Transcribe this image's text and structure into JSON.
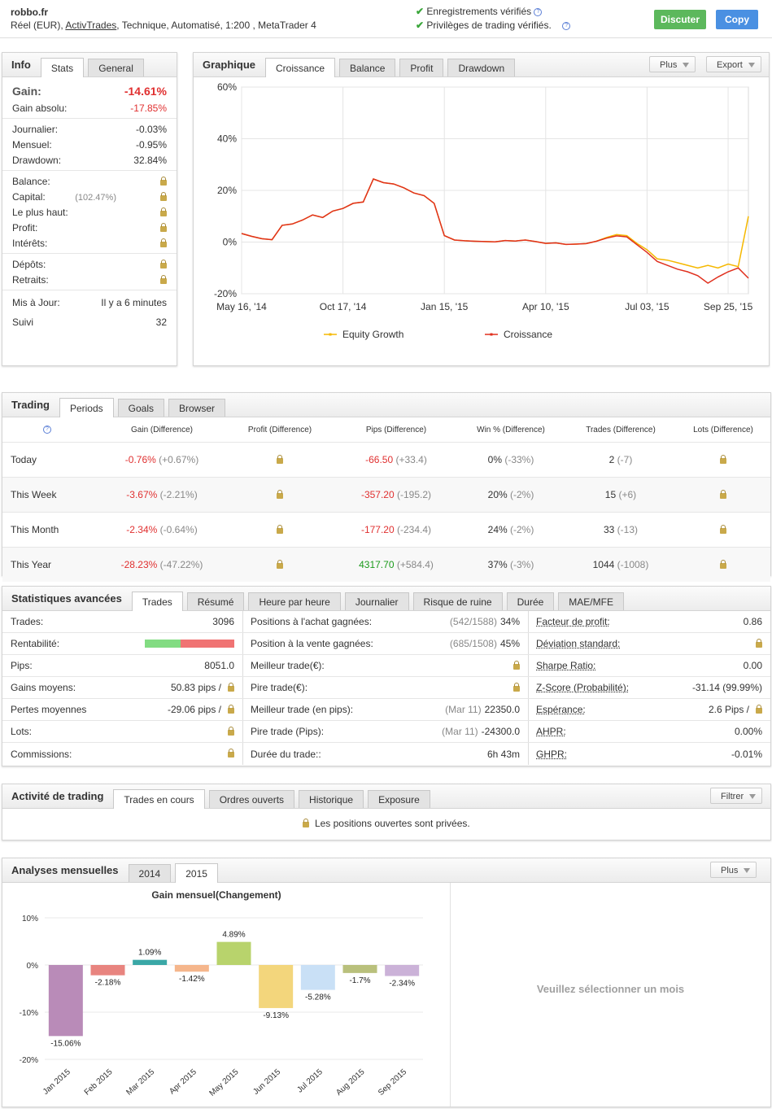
{
  "header": {
    "site": "robbo.fr",
    "account": "Réel (EUR), ",
    "broker": "ActivTrades",
    "details": ", Technique, Automatisé, 1:200 , MetaTrader 4",
    "verified": [
      "Enregistrements vérifiés",
      "Privilèges de trading vérifiés."
    ],
    "buttons": [
      "Discuter",
      "Copy"
    ]
  },
  "info": {
    "tabs": [
      "Info",
      "Stats",
      "General"
    ],
    "gain": {
      "label": "Gain:",
      "value": "-14.61%"
    },
    "groups": [
      [
        {
          "label": "Gain absolu:",
          "value": "-17.85%"
        }
      ],
      [
        {
          "label": "Journalier:",
          "value": "-0.03%"
        },
        {
          "label": "Mensuel:",
          "value": "-0.95%"
        },
        {
          "label": "Drawdown:",
          "value": "32.84%"
        }
      ],
      [
        {
          "label": "Balance:",
          "lock": true
        },
        {
          "label": "Capital:",
          "value": "(102.47%)",
          "lock": true
        },
        {
          "label": "Le plus haut:",
          "lock": true
        },
        {
          "label": "Profit:",
          "lock": true
        },
        {
          "label": "Intérêts:",
          "lock": true
        }
      ],
      [
        {
          "label": "Dépôts:",
          "lock": true
        },
        {
          "label": "Retraits:",
          "lock": true
        }
      ],
      [
        {
          "label": "Mis à Jour:",
          "value": "Il y a 6 minutes"
        },
        {
          "label": "Suivi",
          "value": "32"
        }
      ]
    ]
  },
  "graph": {
    "tabs": [
      "Graphique",
      "Croissance",
      "Balance",
      "Profit",
      "Drawdown"
    ],
    "buttons": [
      "Plus",
      "Export"
    ]
  },
  "chart_data": [
    {
      "type": "line",
      "categories": [
        "2014-05-16",
        "2014-05-31",
        "2014-06-16",
        "2014-07-01",
        "2014-07-17",
        "2014-08-01",
        "2014-08-16",
        "2014-09-01",
        "2014-09-16",
        "2014-10-02",
        "2014-10-17",
        "2014-10-26",
        "2014-11-04",
        "2014-11-13",
        "2014-11-22",
        "2014-12-01",
        "2014-12-10",
        "2014-12-19",
        "2014-12-28",
        "2015-01-06",
        "2015-01-15",
        "2015-01-23",
        "2015-02-01",
        "2015-02-09",
        "2015-02-18",
        "2015-02-26",
        "2015-03-07",
        "2015-03-15",
        "2015-03-24",
        "2015-04-01",
        "2015-04-10",
        "2015-04-18",
        "2015-04-27",
        "2015-05-05",
        "2015-05-14",
        "2015-05-22",
        "2015-05-30",
        "2015-06-08",
        "2015-06-16",
        "2015-06-25",
        "2015-07-03",
        "2015-07-13",
        "2015-07-24",
        "2015-08-03",
        "2015-08-14",
        "2015-08-24",
        "2015-09-04",
        "2015-09-14",
        "2015-09-25",
        "2015-10-05",
        "2015-10-16"
      ],
      "xticks": [
        {
          "value": "2014-05-16",
          "label": "May 16, '14"
        },
        {
          "value": "2014-10-17",
          "label": "Oct 17, '14"
        },
        {
          "value": "2015-01-15",
          "label": "Jan 15, '15"
        },
        {
          "value": "2015-04-10",
          "label": "Apr 10, '15"
        },
        {
          "value": "2015-07-03",
          "label": "Jul 03, '15"
        },
        {
          "value": "2015-09-25",
          "label": "Sep 25, '15"
        }
      ],
      "ylim": [
        -20,
        60
      ],
      "yticks": [
        {
          "value": 60,
          "label": "60%"
        },
        {
          "value": 40,
          "label": "40%"
        },
        {
          "value": 20,
          "label": "20%"
        },
        {
          "value": 0,
          "label": "0%"
        },
        {
          "value": -20,
          "label": "-20%"
        }
      ],
      "grid": true,
      "series": [
        {
          "name": "Equity Growth",
          "color": "#f5b800",
          "values": [
            3.3,
            2.2,
            1.3,
            0.9,
            6.5,
            7,
            8.5,
            10.5,
            9.5,
            12,
            13,
            15,
            15.5,
            24.4,
            23,
            22.5,
            21,
            19,
            18,
            15,
            2.5,
            0.8,
            0.5,
            0.3,
            0.2,
            0.1,
            0.6,
            0.4,
            0.8,
            0.2,
            -0.5,
            -0.3,
            -0.9,
            -0.8,
            -0.6,
            0.3,
            1.8,
            2.9,
            2.5,
            -0.5,
            -3,
            -6.5,
            -7,
            -8,
            -9,
            -10,
            -9,
            -10,
            -8.5,
            -9.5,
            10
          ]
        },
        {
          "name": "Croissance",
          "color": "#e0301e",
          "values": [
            3.3,
            2.2,
            1.3,
            0.9,
            6.5,
            7,
            8.5,
            10.5,
            9.5,
            12,
            13,
            15,
            15.5,
            24.4,
            23,
            22.5,
            21,
            19,
            18,
            15,
            2.5,
            0.8,
            0.5,
            0.3,
            0.2,
            0.1,
            0.6,
            0.4,
            0.8,
            0.2,
            -0.5,
            -0.3,
            -0.9,
            -0.8,
            -0.6,
            0.3,
            1.5,
            2.4,
            2,
            -1,
            -4,
            -7.5,
            -9,
            -10.5,
            -11.5,
            -13,
            -15.9,
            -13.5,
            -11.5,
            -10,
            -14
          ]
        }
      ]
    },
    {
      "type": "bar",
      "title": "Gain mensuel(Changement)",
      "categories": [
        "Jan 2015",
        "Feb 2015",
        "Mar 2015",
        "Apr 2015",
        "May 2015",
        "Jun 2015",
        "Jul 2015",
        "Aug 2015",
        "Sep 2015"
      ],
      "values": [
        -15.06,
        -2.18,
        1.09,
        -1.42,
        4.89,
        -9.13,
        -5.28,
        -1.7,
        -2.34
      ],
      "value_labels": [
        "-15.06%",
        "-2.18%",
        "1.09%",
        "-1.42%",
        "4.89%",
        "-9.13%",
        "-5.28%",
        "-1.7%",
        "-2.34%"
      ],
      "colors": [
        "#b98bb8",
        "#e8847f",
        "#3aa7a6",
        "#f5b68c",
        "#b8d36c",
        "#f3d67c",
        "#c9e0f6",
        "#b9c07c",
        "#cbb2d8"
      ],
      "ylim": [
        -20,
        10
      ],
      "yticks": [
        {
          "value": 10,
          "label": "10%"
        },
        {
          "value": 0,
          "label": "0%"
        },
        {
          "value": -10,
          "label": "-10%"
        },
        {
          "value": -20,
          "label": "-20%"
        }
      ],
      "grid": true
    }
  ],
  "trading": {
    "tabs": [
      "Trading",
      "Periods",
      "Goals",
      "Browser"
    ],
    "headers": [
      "Gain (Difference)",
      "Profit (Difference)",
      "Pips (Difference)",
      "Win % (Difference)",
      "Trades (Difference)",
      "Lots (Difference)"
    ],
    "rows": [
      {
        "period": "Today",
        "gain": "-0.76%",
        "gain_diff": "(+0.67%)",
        "pips": "-66.50",
        "pips_diff": "(+33.4)",
        "win": "0%",
        "win_diff": "(-33%)",
        "trades": "2",
        "trades_diff": "(-7)"
      },
      {
        "period": "This Week",
        "gain": "-3.67%",
        "gain_diff": "(-2.21%)",
        "pips": "-357.20",
        "pips_diff": "(-195.2)",
        "win": "20%",
        "win_diff": "(-2%)",
        "trades": "15",
        "trades_diff": "(+6)"
      },
      {
        "period": "This Month",
        "gain": "-2.34%",
        "gain_diff": "(-0.64%)",
        "pips": "-177.20",
        "pips_diff": "(-234.4)",
        "win": "24%",
        "win_diff": "(-2%)",
        "trades": "33",
        "trades_diff": "(-13)"
      },
      {
        "period": "This Year",
        "gain": "-28.23%",
        "gain_diff": "(-47.22%)",
        "pips": "4317.70",
        "pips_diff": "(+584.4)",
        "win": "37%",
        "win_diff": "(-3%)",
        "trades": "1044",
        "trades_diff": "(-1008)"
      }
    ]
  },
  "advanced": {
    "tabs": [
      "Statistiques avancées",
      "Trades",
      "Résumé",
      "Heure par heure",
      "Journalier",
      "Risque de ruine",
      "Durée",
      "MAE/MFE"
    ],
    "columns": [
      [
        {
          "label": "Trades:",
          "value": "3096"
        },
        {
          "label": "Rentabilité:",
          "ratio": 39.6
        },
        {
          "label": "Pips:",
          "value": "8051.0"
        },
        {
          "label": "Gains moyens:",
          "value": "50.83 pips /",
          "lock": true
        },
        {
          "label": "Pertes moyennes",
          "value": "-29.06 pips /",
          "lock": true
        },
        {
          "label": "Lots:",
          "lock": true
        },
        {
          "label": "Commissions:",
          "lock": true
        }
      ],
      [
        {
          "label": "Positions à l'achat gagnées:",
          "note": "(542/1588)",
          "value": "34%"
        },
        {
          "label": "Position à la vente gagnées:",
          "note": "(685/1508)",
          "value": "45%"
        },
        {
          "label": "Meilleur trade(€):",
          "lock": true
        },
        {
          "label": "Pire trade(€):",
          "lock": true
        },
        {
          "label": "Meilleur trade (en pips):",
          "note": "(Mar 11)",
          "value": "22350.0"
        },
        {
          "label": "Pire trade (Pips):",
          "note": "(Mar 11)",
          "value": "-24300.0"
        },
        {
          "label": "Durée du trade::",
          "value": "6h 43m"
        }
      ],
      [
        {
          "label": "Facteur de profit:",
          "value": "0.86"
        },
        {
          "label": "Déviation standard:",
          "lock": true
        },
        {
          "label": "Sharpe Ratio:",
          "value": "0.00"
        },
        {
          "label": "Z-Score (Probabilité):",
          "value": "-31.14 (99.99%)"
        },
        {
          "label": "Espérance:",
          "value": "2.6 Pips /",
          "lock": true
        },
        {
          "label": "AHPR:",
          "value": "0.00%"
        },
        {
          "label": "GHPR:",
          "value": "-0.01%"
        }
      ]
    ]
  },
  "activity": {
    "tabs": [
      "Activité de trading",
      "Trades en cours",
      "Ordres ouverts",
      "Historique",
      "Exposure"
    ],
    "button": "Filtrer",
    "message": "Les positions ouvertes sont privées."
  },
  "monthly": {
    "tabs": [
      "Analyses mensuelles",
      "2014",
      "2015"
    ],
    "button": "Plus",
    "empty": "Veuillez sélectionner un mois"
  }
}
